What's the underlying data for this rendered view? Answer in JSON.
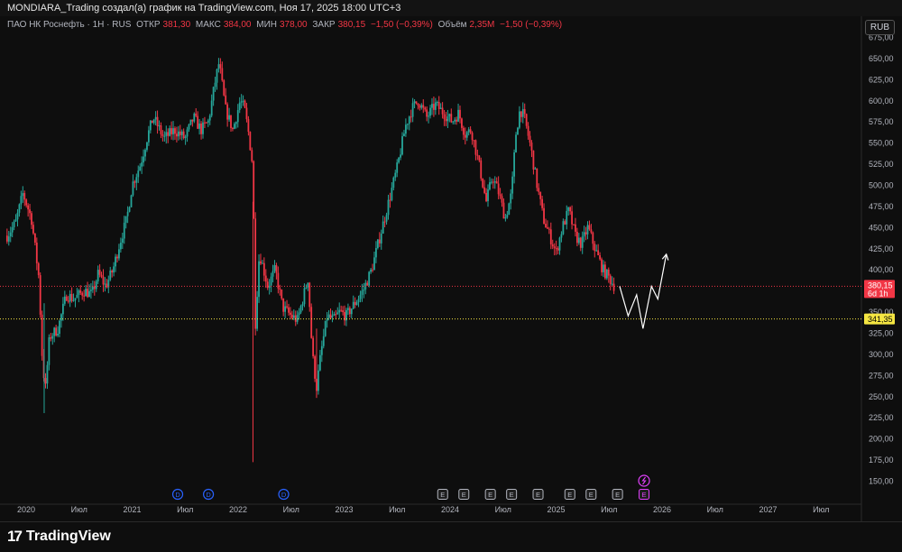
{
  "header": {
    "title": "MONDIARA_Trading создал(а) график на TradingView.com, Ноя 17, 2025 18:00 UTC+3"
  },
  "legend": {
    "symbol": "ПАО НК Роснефть · 1Н · RUS",
    "open_label": "ОТКР",
    "open_value": "381,30",
    "high_label": "МАКС",
    "high_value": "384,00",
    "low_label": "МИН",
    "low_value": "378,00",
    "close_label": "ЗАКР",
    "close_value": "380,15",
    "change": "−1,50 (−0,39%)",
    "volume_label": "Объём",
    "volume_value": "2,35M",
    "volume_change": "−1,50 (−0,39%)"
  },
  "currency_button": "RUB",
  "brand": {
    "mark": "17",
    "name": "TradingView"
  },
  "colors": {
    "up": "#26a69a",
    "down": "#f23645",
    "price_line": "#f23645",
    "level_line": "#f5e642",
    "projection": "#ffffff",
    "dividend_marker": "#2962ff",
    "earnings_marker": "#b2b5be",
    "upcoming_marker": "#e040fb"
  },
  "chart_data": {
    "type": "candlestick",
    "y_axis": {
      "min": 150,
      "max": 675,
      "step": 25,
      "ticks": [
        "150,00",
        "175,00",
        "200,00",
        "225,00",
        "250,00",
        "275,00",
        "300,00",
        "325,00",
        "350,00",
        "375,00",
        "400,00",
        "425,00",
        "450,00",
        "475,00",
        "500,00",
        "525,00",
        "550,00",
        "575,00",
        "600,00",
        "625,00",
        "650,00",
        "675,00"
      ]
    },
    "x_axis": {
      "ticks": [
        {
          "label": "2020",
          "t": 0.0
        },
        {
          "label": "Июл",
          "t": 0.5
        },
        {
          "label": "2021",
          "t": 1.0
        },
        {
          "label": "Июл",
          "t": 1.5
        },
        {
          "label": "2022",
          "t": 2.0
        },
        {
          "label": "Июл",
          "t": 2.5
        },
        {
          "label": "2023",
          "t": 3.0
        },
        {
          "label": "Июл",
          "t": 3.5
        },
        {
          "label": "2024",
          "t": 4.0
        },
        {
          "label": "Июл",
          "t": 4.5
        },
        {
          "label": "2025",
          "t": 5.0
        },
        {
          "label": "Июл",
          "t": 5.5
        },
        {
          "label": "2026",
          "t": 6.0
        },
        {
          "label": "Июл",
          "t": 6.5
        },
        {
          "label": "2027",
          "t": 7.0
        },
        {
          "label": "Июл",
          "t": 7.5
        }
      ]
    },
    "price_path": [
      [
        -0.18,
        440
      ],
      [
        -0.1,
        455
      ],
      [
        -0.03,
        490
      ],
      [
        0.05,
        460
      ],
      [
        0.12,
        390
      ],
      [
        0.15,
        300
      ],
      [
        0.18,
        255
      ],
      [
        0.22,
        320
      ],
      [
        0.3,
        330
      ],
      [
        0.38,
        370
      ],
      [
        0.45,
        365
      ],
      [
        0.55,
        375
      ],
      [
        0.62,
        370
      ],
      [
        0.68,
        395
      ],
      [
        0.75,
        380
      ],
      [
        0.82,
        400
      ],
      [
        0.88,
        430
      ],
      [
        0.95,
        460
      ],
      [
        1.0,
        500
      ],
      [
        1.08,
        525
      ],
      [
        1.15,
        560
      ],
      [
        1.2,
        580
      ],
      [
        1.3,
        555
      ],
      [
        1.4,
        565
      ],
      [
        1.5,
        555
      ],
      [
        1.58,
        580
      ],
      [
        1.65,
        565
      ],
      [
        1.72,
        575
      ],
      [
        1.78,
        620
      ],
      [
        1.82,
        645
      ],
      [
        1.88,
        590
      ],
      [
        1.95,
        565
      ],
      [
        2.02,
        600
      ],
      [
        2.06,
        590
      ],
      [
        2.1,
        560
      ],
      [
        2.14,
        520
      ],
      [
        2.16,
        330
      ],
      [
        2.2,
        420
      ],
      [
        2.28,
        380
      ],
      [
        2.35,
        400
      ],
      [
        2.42,
        355
      ],
      [
        2.5,
        345
      ],
      [
        2.56,
        340
      ],
      [
        2.62,
        370
      ],
      [
        2.66,
        390
      ],
      [
        2.7,
        300
      ],
      [
        2.74,
        260
      ],
      [
        2.78,
        300
      ],
      [
        2.84,
        345
      ],
      [
        2.9,
        340
      ],
      [
        2.96,
        350
      ],
      [
        3.02,
        345
      ],
      [
        3.1,
        360
      ],
      [
        3.18,
        375
      ],
      [
        3.26,
        400
      ],
      [
        3.34,
        440
      ],
      [
        3.42,
        480
      ],
      [
        3.5,
        520
      ],
      [
        3.58,
        570
      ],
      [
        3.64,
        590
      ],
      [
        3.7,
        600
      ],
      [
        3.78,
        580
      ],
      [
        3.86,
        595
      ],
      [
        3.94,
        585
      ],
      [
        4.02,
        575
      ],
      [
        4.08,
        585
      ],
      [
        4.14,
        560
      ],
      [
        4.2,
        565
      ],
      [
        4.28,
        520
      ],
      [
        4.34,
        480
      ],
      [
        4.4,
        510
      ],
      [
        4.46,
        490
      ],
      [
        4.52,
        460
      ],
      [
        4.58,
        490
      ],
      [
        4.62,
        560
      ],
      [
        4.66,
        590
      ],
      [
        4.7,
        580
      ],
      [
        4.76,
        545
      ],
      [
        4.82,
        500
      ],
      [
        4.88,
        460
      ],
      [
        4.94,
        440
      ],
      [
        5.0,
        420
      ],
      [
        5.06,
        450
      ],
      [
        5.12,
        470
      ],
      [
        5.18,
        440
      ],
      [
        5.24,
        430
      ],
      [
        5.3,
        450
      ],
      [
        5.38,
        420
      ],
      [
        5.44,
        400
      ],
      [
        5.5,
        390
      ],
      [
        5.55,
        380.15
      ]
    ],
    "last_price": {
      "value": 380.15,
      "label": "380,15",
      "countdown": "6d 1h"
    },
    "level_line": {
      "value": 341.35,
      "label": "341,35"
    },
    "projection_path": [
      [
        5.6,
        380
      ],
      [
        5.68,
        345
      ],
      [
        5.76,
        370
      ],
      [
        5.82,
        330
      ],
      [
        5.9,
        380
      ],
      [
        5.96,
        365
      ],
      [
        6.04,
        418
      ]
    ],
    "events": [
      {
        "type": "dividend",
        "label": "D",
        "t": 1.43
      },
      {
        "type": "dividend",
        "label": "D",
        "t": 1.72
      },
      {
        "type": "dividend",
        "label": "D",
        "t": 2.43
      },
      {
        "type": "earnings",
        "label": "E",
        "t": 3.93
      },
      {
        "type": "earnings",
        "label": "E",
        "t": 4.13
      },
      {
        "type": "earnings",
        "label": "E",
        "t": 4.38
      },
      {
        "type": "earnings",
        "label": "E",
        "t": 4.58
      },
      {
        "type": "earnings",
        "label": "E",
        "t": 4.83
      },
      {
        "type": "earnings",
        "label": "E",
        "t": 5.13
      },
      {
        "type": "earnings",
        "label": "E",
        "t": 5.33
      },
      {
        "type": "earnings",
        "label": "E",
        "t": 5.58
      },
      {
        "type": "upcoming",
        "label": "E",
        "t": 5.83
      }
    ]
  }
}
